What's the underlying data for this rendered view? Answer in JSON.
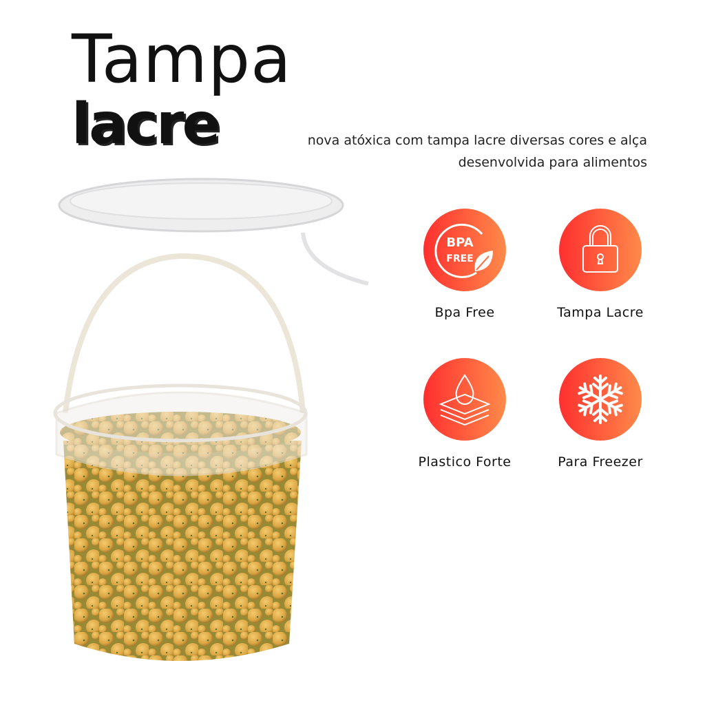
{
  "title": {
    "line1": "Tampa",
    "line2": "lacre"
  },
  "description": "nova atóxica com tampa lacre diversas cores e alça desenvolvida para alimentos",
  "features": [
    {
      "label": "Bpa Free",
      "icon": "bpa-free-icon",
      "icon_text_1": "BPA",
      "icon_text_2": "FREE"
    },
    {
      "label": "Tampa Lacre",
      "icon": "padlock-icon"
    },
    {
      "label": "Plastico Forte",
      "icon": "layers-drop-icon"
    },
    {
      "label": "Para Freezer",
      "icon": "snowflake-icon"
    }
  ],
  "colors": {
    "gradient_start": "#ff2f2f",
    "gradient_end": "#ff8a4a",
    "text": "#111111"
  }
}
